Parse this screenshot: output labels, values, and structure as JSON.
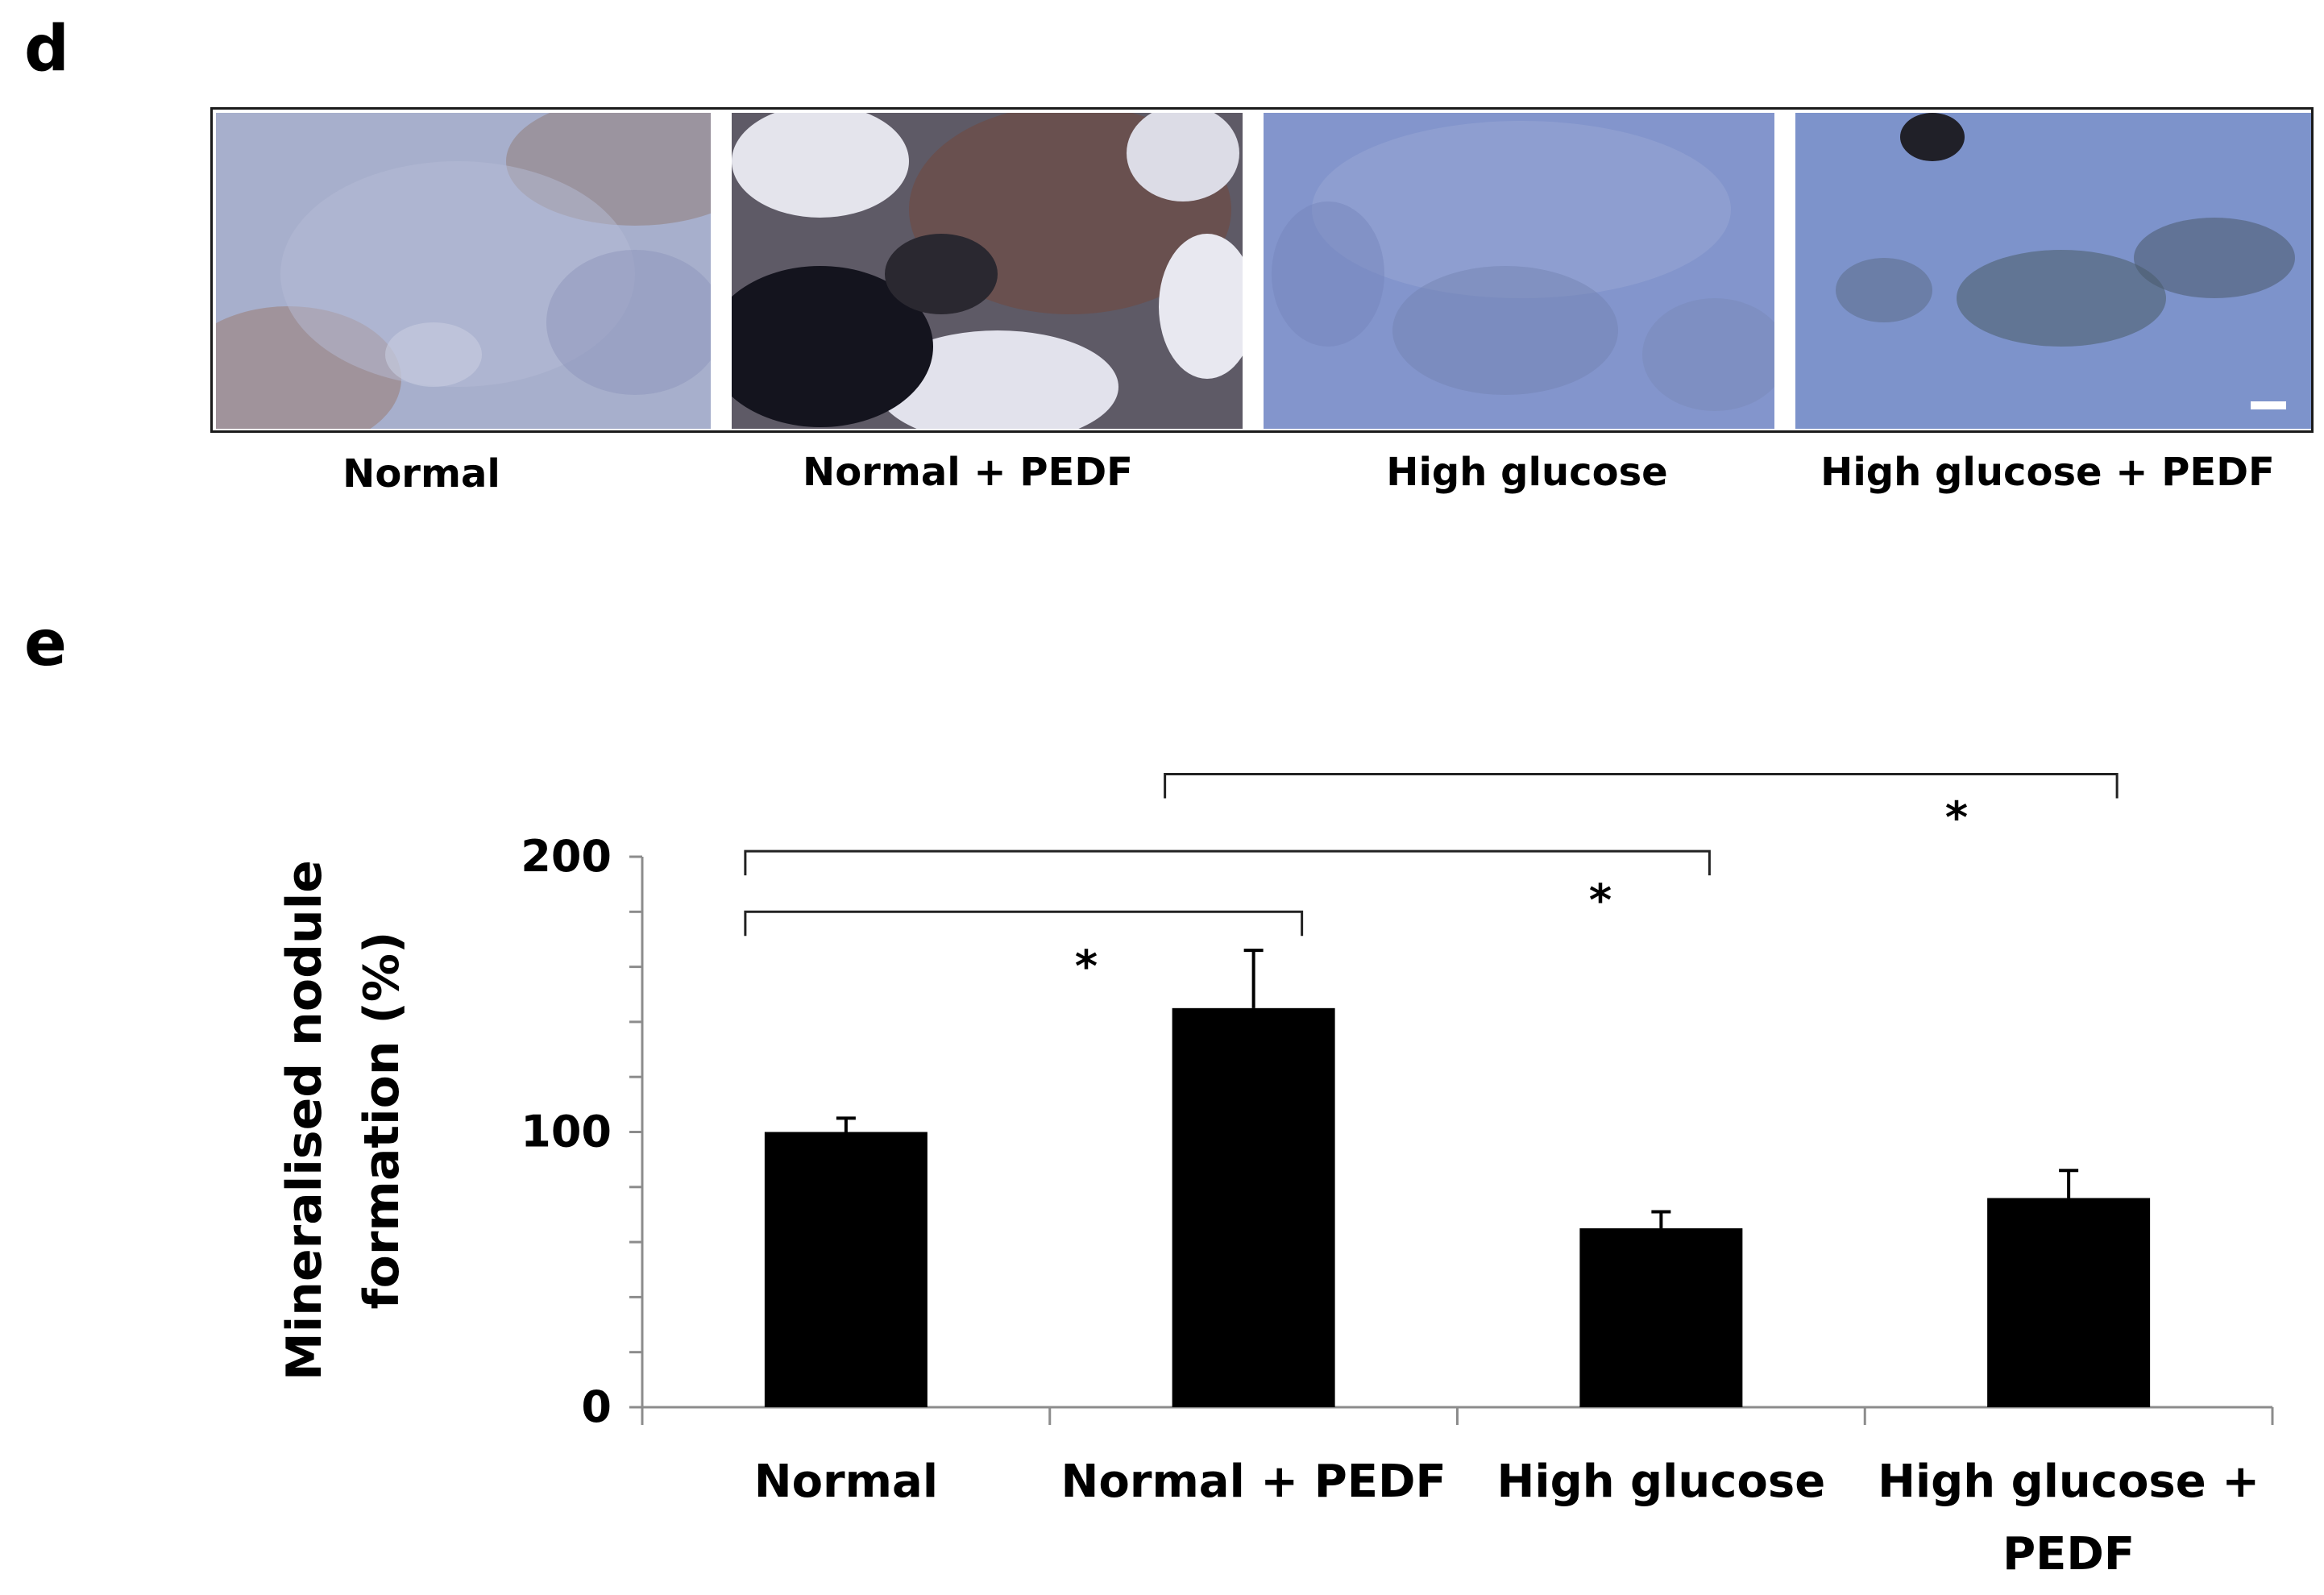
{
  "panel_d": {
    "letter": "d",
    "images": [
      {
        "label": "Normal",
        "base_color": "#9aa4c6",
        "accent_color": "#8a6a5a",
        "description_icon": "micrograph-image"
      },
      {
        "label": "Normal + PEDF",
        "base_color": "#6f6a78",
        "accent_color": "#1c1c2a",
        "description_icon": "micrograph-image"
      },
      {
        "label": "High glucose",
        "base_color": "#7f94cc",
        "accent_color": "#5f6e98",
        "description_icon": "micrograph-image"
      },
      {
        "label": "High glucose + PEDF",
        "base_color": "#7a90c8",
        "accent_color": "#3a4a5a",
        "description_icon": "micrograph-image"
      }
    ]
  },
  "panel_e": {
    "letter": "e"
  },
  "chart_data": {
    "type": "bar",
    "categories": [
      "Normal",
      "Normal + PEDF",
      "High glucose",
      "High glucose + PEDF"
    ],
    "category_lines": [
      [
        "Normal"
      ],
      [
        "Normal + PEDF"
      ],
      [
        "High glucose"
      ],
      [
        "High glucose +",
        "PEDF"
      ]
    ],
    "values": [
      100,
      145,
      65,
      76
    ],
    "errors": [
      5,
      21,
      6,
      10
    ],
    "ylabel": "Mineralised nodule formation (%)",
    "ylabel_lines": [
      "Mineralised nodule",
      "formation (%)"
    ],
    "ylim": [
      0,
      200
    ],
    "yticks": [
      0,
      100,
      200
    ],
    "minor_tick_step": 20,
    "bar_color": "#000000",
    "significance": [
      {
        "from": 0,
        "to": 1,
        "level": 180,
        "label": "*",
        "star_value": 163
      },
      {
        "from": 0,
        "to": 2,
        "level": 202,
        "label": "*",
        "star_value": 187
      },
      {
        "from": 1,
        "to": 3,
        "level": 230,
        "label": "*",
        "star_value": 217
      }
    ]
  }
}
